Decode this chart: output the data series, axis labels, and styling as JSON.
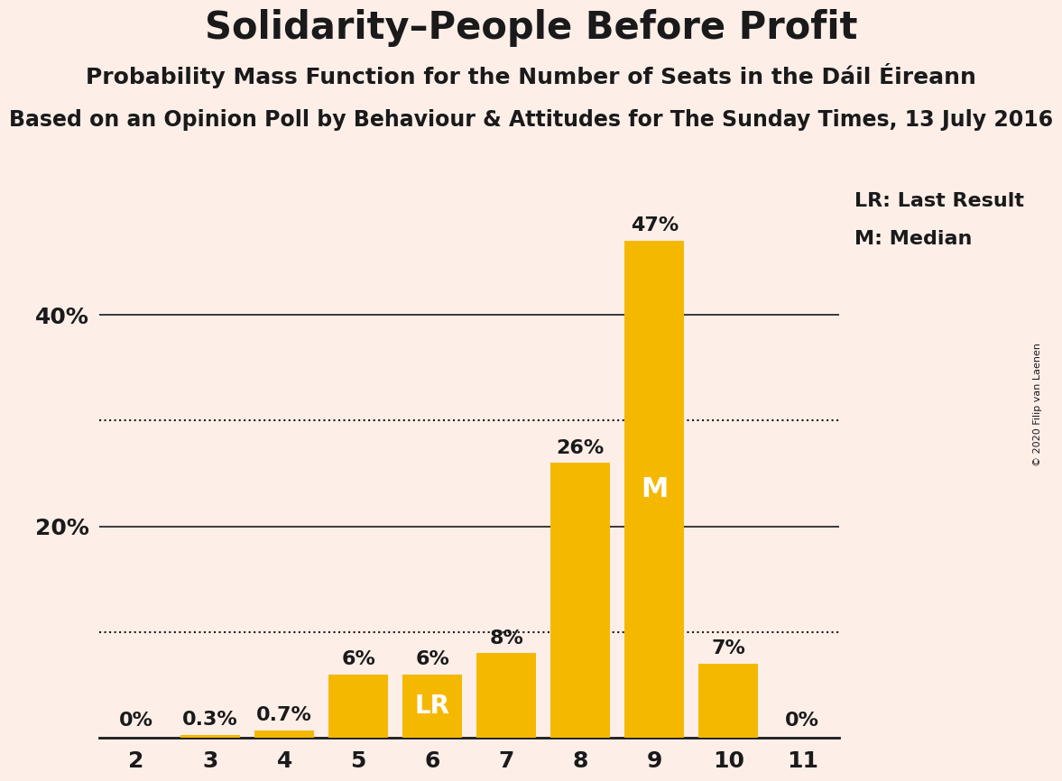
{
  "title": "Solidarity–People Before Profit",
  "subtitle": "Probability Mass Function for the Number of Seats in the Dáil Éireann",
  "source": "Based on an Opinion Poll by Behaviour & Attitudes for The Sunday Times, 13 July 2016",
  "copyright": "© 2020 Filip van Laenen",
  "seats": [
    2,
    3,
    4,
    5,
    6,
    7,
    8,
    9,
    10,
    11
  ],
  "values": [
    0.0,
    0.3,
    0.7,
    6.0,
    6.0,
    8.0,
    26.0,
    47.0,
    7.0,
    0.0
  ],
  "labels": [
    "0%",
    "0.3%",
    "0.7%",
    "6%",
    "6%",
    "8%",
    "26%",
    "47%",
    "7%",
    "0%"
  ],
  "bar_color": "#F5B800",
  "bg_color": "#FDEEE8",
  "text_color": "#1a1a1a",
  "lr_seat": 6,
  "median_seat": 9,
  "ylim": [
    0,
    52
  ],
  "yticks": [
    20,
    40
  ],
  "ytick_labels": [
    "20%",
    "40%"
  ],
  "solid_lines": [
    20,
    40
  ],
  "dotted_lines": [
    10,
    30
  ],
  "legend_lr": "LR: Last Result",
  "legend_m": "M: Median",
  "title_fontsize": 30,
  "subtitle_fontsize": 18,
  "source_fontsize": 17,
  "label_fontsize": 16,
  "tick_fontsize": 18,
  "legend_fontsize": 16
}
